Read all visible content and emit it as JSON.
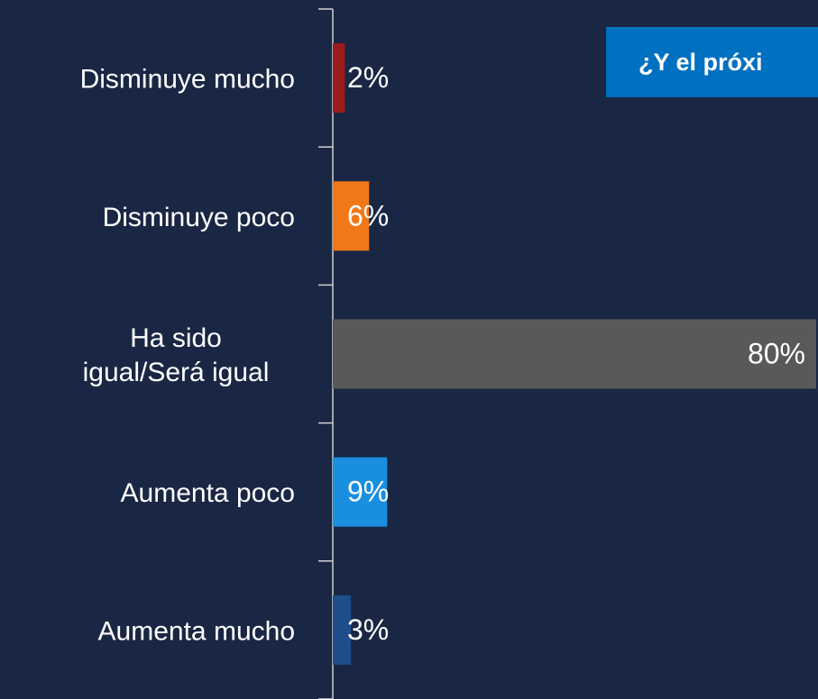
{
  "chart_data": {
    "type": "barh",
    "annotation": "¿Y el próxi",
    "categories": [
      "Disminuye mucho",
      "Disminuye poco",
      "Ha sido\nigual/Será igual",
      "Aumenta poco",
      "Aumenta mucho"
    ],
    "values": [
      2,
      6,
      80,
      9,
      3
    ],
    "value_labels": [
      "2%",
      "6%",
      "80%",
      "9%",
      "3%"
    ],
    "colors": [
      "#9b1c1c",
      "#f07818",
      "#595959",
      "#1a8fe0",
      "#1f4e8c"
    ],
    "xlim": [
      0,
      80
    ]
  }
}
